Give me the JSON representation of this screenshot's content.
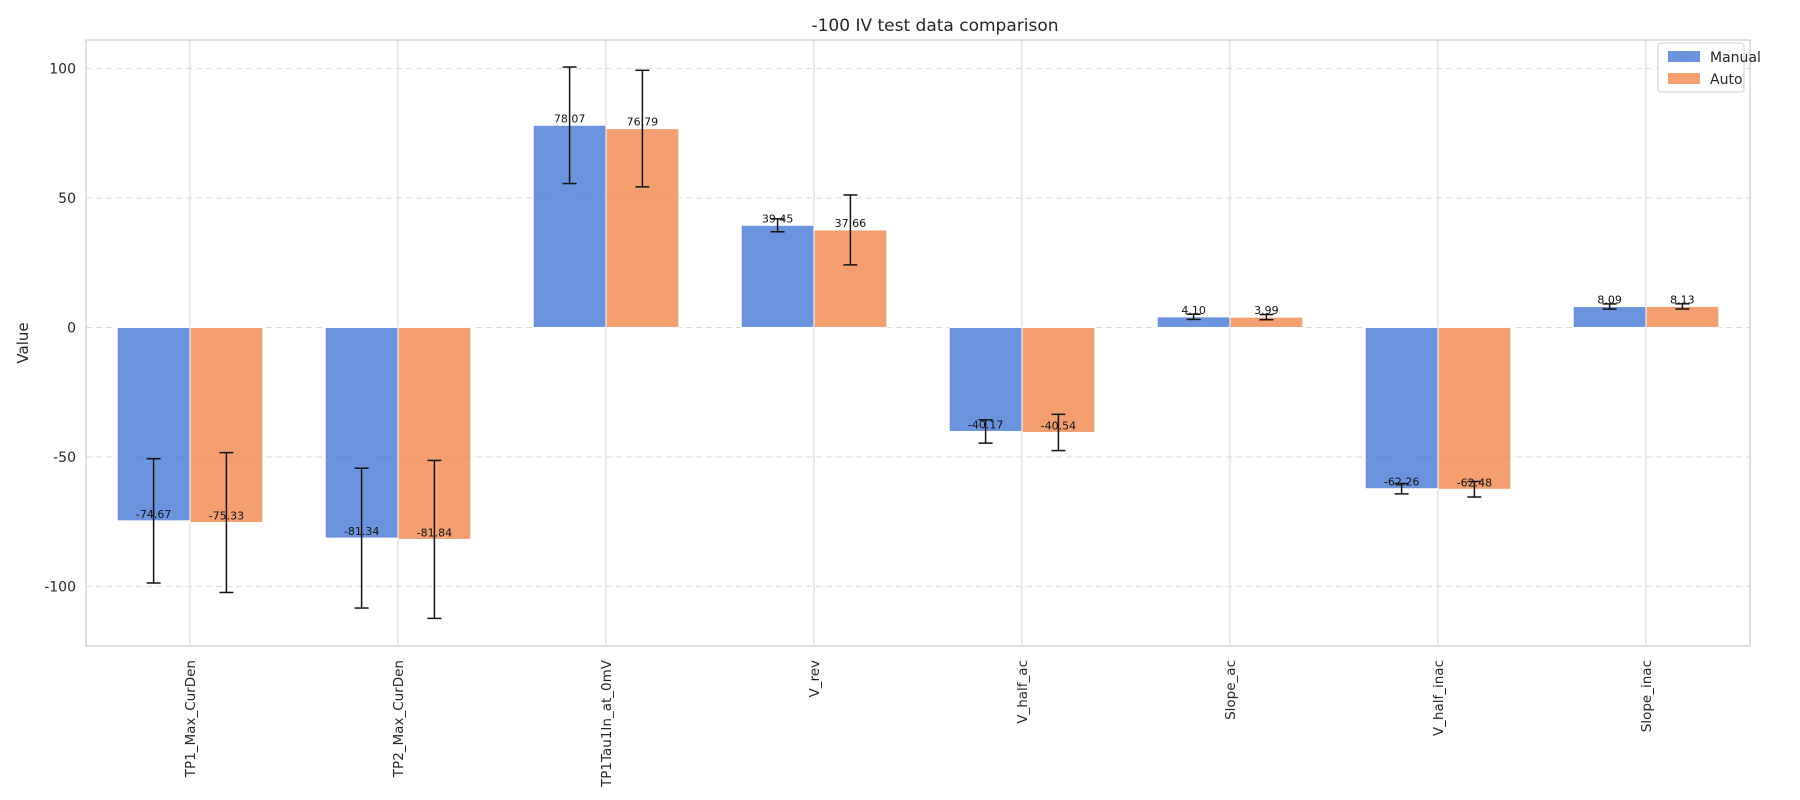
{
  "chart_data": {
    "type": "bar",
    "title": "-100 IV test data comparison",
    "xlabel": "",
    "ylabel": "Value",
    "ylim": [
      -123,
      111
    ],
    "yticks": [
      -100,
      -50,
      0,
      50,
      100
    ],
    "grid": true,
    "legend_position": "top-right",
    "categories": [
      "TP1_Max_CurDen",
      "TP2_Max_CurDen",
      "TP1Tau1In_at_0mV",
      "V_rev",
      "V_half_ac",
      "Slope_ac",
      "V_half_inac",
      "Slope_inac"
    ],
    "series": [
      {
        "name": "Manual",
        "color": "#4c7bd6",
        "values": [
          -74.67,
          -81.34,
          78.07,
          39.45,
          -40.17,
          4.1,
          -62.26,
          8.09
        ],
        "labels": [
          "-74.67",
          "-81.34",
          "78.07",
          "39.45",
          "-40.17",
          "4.10",
          "-62.26",
          "8.09"
        ],
        "errors": [
          24,
          27,
          22.5,
          2.5,
          4.5,
          1,
          2,
          1
        ]
      },
      {
        "name": "Auto",
        "color": "#f08a50",
        "values": [
          -75.33,
          -81.84,
          76.79,
          37.66,
          -40.54,
          3.99,
          -62.48,
          8.13
        ],
        "labels": [
          "-75.33",
          "-81.84",
          "76.79",
          "37.66",
          "-40.54",
          "3.99",
          "-62.48",
          "8.13"
        ],
        "errors": [
          27,
          30.5,
          22.5,
          13.5,
          7,
          1,
          3,
          1
        ]
      }
    ]
  }
}
